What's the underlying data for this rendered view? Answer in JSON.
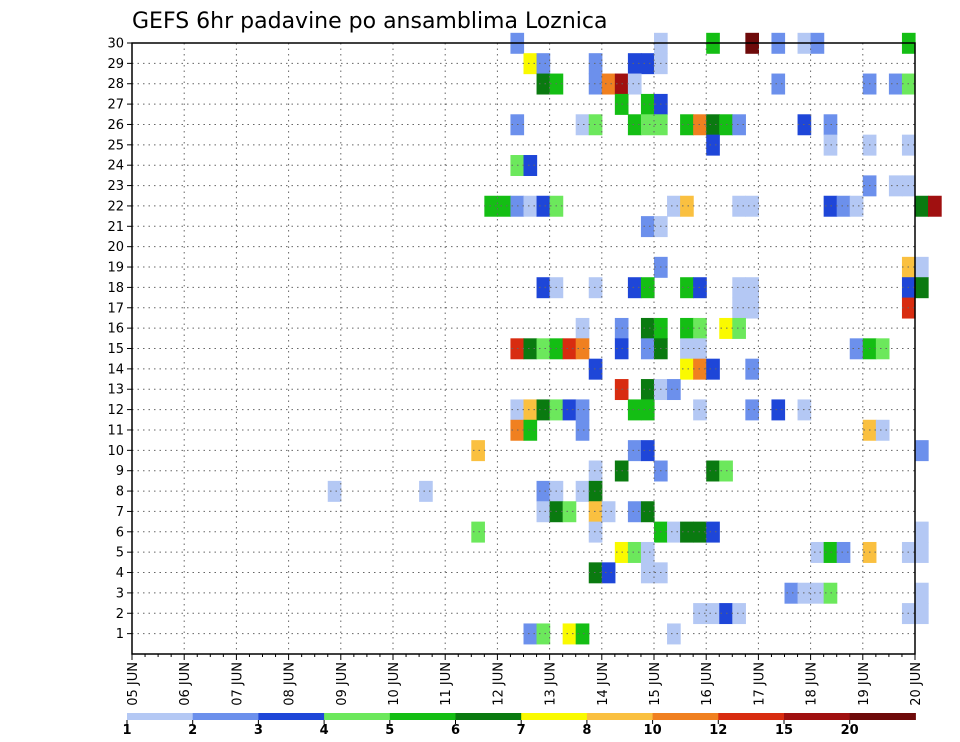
{
  "chart_data": {
    "type": "heatmap",
    "title": "GEFS 6hr padavine po ansamblima Loznica",
    "xlabel": "",
    "ylabel": "",
    "x_tick_labels": [
      "05 JUN",
      "06 JUN",
      "07 JUN",
      "08 JUN",
      "09 JUN",
      "10 JUN",
      "11 JUN",
      "12 JUN",
      "13 JUN",
      "14 JUN",
      "15 JUN",
      "16 JUN",
      "17 JUN",
      "18 JUN",
      "19 JUN",
      "20 JUN"
    ],
    "y_tick_labels": [
      "1",
      "2",
      "3",
      "4",
      "5",
      "6",
      "7",
      "8",
      "9",
      "10",
      "11",
      "12",
      "13",
      "14",
      "15",
      "16",
      "17",
      "18",
      "19",
      "20",
      "21",
      "22",
      "23",
      "24",
      "25",
      "26",
      "27",
      "28",
      "29",
      "30"
    ],
    "x_range_days": [
      0,
      15
    ],
    "y_range": [
      0,
      30
    ],
    "grid": "dotted",
    "legend": {
      "position": "bottom",
      "bins": [
        {
          "color": "#b4c8f4"
        },
        {
          "color": "#6c90ec"
        },
        {
          "color": "#1e46d8"
        },
        {
          "color": "#6ce85c"
        },
        {
          "color": "#14be14"
        },
        {
          "color": "#0a7a10"
        },
        {
          "color": "#fafa00"
        },
        {
          "color": "#fac040"
        },
        {
          "color": "#f08020"
        },
        {
          "color": "#d82c10"
        },
        {
          "color": "#a01010"
        },
        {
          "color": "#6e0a0a"
        }
      ],
      "tick_labels": [
        "1",
        "2",
        "3",
        "4",
        "5",
        "6",
        "7",
        "8",
        "10",
        "12",
        "15",
        "20"
      ]
    },
    "cells": [
      [
        7.25,
        30,
        2
      ],
      [
        10,
        30,
        1
      ],
      [
        11,
        30,
        5
      ],
      [
        11.75,
        30,
        12
      ],
      [
        12.25,
        30,
        2
      ],
      [
        12.75,
        30,
        1
      ],
      [
        13,
        30,
        2
      ],
      [
        14.75,
        30,
        5
      ],
      [
        7.5,
        29,
        7
      ],
      [
        7.75,
        29,
        2
      ],
      [
        8.75,
        29,
        2
      ],
      [
        9.5,
        29,
        3
      ],
      [
        9.75,
        29,
        3
      ],
      [
        10,
        29,
        1
      ],
      [
        7.75,
        28,
        6
      ],
      [
        8,
        28,
        5
      ],
      [
        8.75,
        28,
        2
      ],
      [
        9,
        28,
        9
      ],
      [
        9.25,
        28,
        11
      ],
      [
        9.5,
        28,
        1
      ],
      [
        12.25,
        28,
        2
      ],
      [
        14,
        28,
        2
      ],
      [
        14.5,
        28,
        2
      ],
      [
        14.75,
        28,
        4
      ],
      [
        9.25,
        27,
        5
      ],
      [
        9.75,
        27,
        5
      ],
      [
        10,
        27,
        3
      ],
      [
        7.25,
        26,
        2
      ],
      [
        8.5,
        26,
        1
      ],
      [
        8.75,
        26,
        4
      ],
      [
        9.5,
        26,
        5
      ],
      [
        9.75,
        26,
        4
      ],
      [
        10,
        26,
        4
      ],
      [
        10.5,
        26,
        5
      ],
      [
        10.75,
        26,
        9
      ],
      [
        11,
        26,
        6
      ],
      [
        11.25,
        26,
        5
      ],
      [
        11.5,
        26,
        2
      ],
      [
        12.75,
        26,
        3
      ],
      [
        13.25,
        26,
        2
      ],
      [
        11,
        25,
        3
      ],
      [
        13.25,
        25,
        1
      ],
      [
        14,
        25,
        1
      ],
      [
        14.75,
        25,
        1
      ],
      [
        7.25,
        24,
        4
      ],
      [
        7.5,
        24,
        3
      ],
      [
        14,
        23,
        2
      ],
      [
        14.5,
        23,
        1
      ],
      [
        14.75,
        23,
        1
      ],
      [
        6.75,
        22,
        5
      ],
      [
        7,
        22,
        5
      ],
      [
        7.25,
        22,
        2
      ],
      [
        7.5,
        22,
        1
      ],
      [
        7.75,
        22,
        3
      ],
      [
        8,
        22,
        4
      ],
      [
        10.25,
        22,
        1
      ],
      [
        10.5,
        22,
        8
      ],
      [
        11.5,
        22,
        1
      ],
      [
        11.75,
        22,
        1
      ],
      [
        13.25,
        22,
        3
      ],
      [
        13.5,
        22,
        2
      ],
      [
        13.75,
        22,
        1
      ],
      [
        15,
        22,
        6
      ],
      [
        15.25,
        22,
        11
      ],
      [
        9.75,
        21,
        2
      ],
      [
        10,
        21,
        1
      ],
      [
        10,
        19,
        2
      ],
      [
        14.75,
        19,
        8
      ],
      [
        15,
        19,
        1
      ],
      [
        7.75,
        18,
        3
      ],
      [
        8,
        18,
        1
      ],
      [
        8.75,
        18,
        1
      ],
      [
        9.5,
        18,
        3
      ],
      [
        9.75,
        18,
        5
      ],
      [
        10.5,
        18,
        5
      ],
      [
        10.75,
        18,
        3
      ],
      [
        11.5,
        18,
        1
      ],
      [
        11.75,
        18,
        1
      ],
      [
        14.75,
        18,
        3
      ],
      [
        15,
        18,
        6
      ],
      [
        11.5,
        17,
        1
      ],
      [
        11.75,
        17,
        1
      ],
      [
        14.75,
        17,
        10
      ],
      [
        8.5,
        16,
        1
      ],
      [
        9.25,
        16,
        2
      ],
      [
        9.75,
        16,
        6
      ],
      [
        10,
        16,
        5
      ],
      [
        10.5,
        16,
        5
      ],
      [
        10.75,
        16,
        4
      ],
      [
        11.25,
        16,
        7
      ],
      [
        11.5,
        16,
        4
      ],
      [
        7.25,
        15,
        10
      ],
      [
        7.5,
        15,
        6
      ],
      [
        7.75,
        15,
        4
      ],
      [
        8,
        15,
        5
      ],
      [
        8.25,
        15,
        10
      ],
      [
        8.5,
        15,
        9
      ],
      [
        9.25,
        15,
        3
      ],
      [
        9.75,
        15,
        2
      ],
      [
        10,
        15,
        6
      ],
      [
        10.5,
        15,
        1
      ],
      [
        10.75,
        15,
        1
      ],
      [
        13.75,
        15,
        2
      ],
      [
        14,
        15,
        5
      ],
      [
        14.25,
        15,
        4
      ],
      [
        8.75,
        14,
        3
      ],
      [
        10.5,
        14,
        7
      ],
      [
        10.75,
        14,
        9
      ],
      [
        11,
        14,
        3
      ],
      [
        11.75,
        14,
        2
      ],
      [
        9.25,
        13,
        10
      ],
      [
        9.75,
        13,
        6
      ],
      [
        10,
        13,
        1
      ],
      [
        10.25,
        13,
        2
      ],
      [
        7.25,
        12,
        1
      ],
      [
        7.5,
        12,
        8
      ],
      [
        7.75,
        12,
        6
      ],
      [
        8,
        12,
        4
      ],
      [
        8.25,
        12,
        3
      ],
      [
        8.5,
        12,
        2
      ],
      [
        9.5,
        12,
        5
      ],
      [
        9.75,
        12,
        5
      ],
      [
        10.75,
        12,
        1
      ],
      [
        11.75,
        12,
        2
      ],
      [
        12.25,
        12,
        3
      ],
      [
        12.75,
        12,
        1
      ],
      [
        7.25,
        11,
        9
      ],
      [
        7.5,
        11,
        5
      ],
      [
        8.5,
        11,
        2
      ],
      [
        14,
        11,
        8
      ],
      [
        14.25,
        11,
        1
      ],
      [
        6.5,
        10,
        8
      ],
      [
        9.5,
        10,
        2
      ],
      [
        9.75,
        10,
        3
      ],
      [
        15,
        10,
        2
      ],
      [
        8.75,
        9,
        1
      ],
      [
        9.25,
        9,
        6
      ],
      [
        10,
        9,
        2
      ],
      [
        11,
        9,
        6
      ],
      [
        11.25,
        9,
        4
      ],
      [
        3.75,
        8,
        1
      ],
      [
        5.5,
        8,
        1
      ],
      [
        7.75,
        8,
        2
      ],
      [
        8,
        8,
        1
      ],
      [
        8.5,
        8,
        1
      ],
      [
        8.75,
        8,
        6
      ],
      [
        7.75,
        7,
        1
      ],
      [
        8,
        7,
        6
      ],
      [
        8.25,
        7,
        4
      ],
      [
        8.75,
        7,
        8
      ],
      [
        9,
        7,
        1
      ],
      [
        9.5,
        7,
        2
      ],
      [
        9.75,
        7,
        6
      ],
      [
        6.5,
        6,
        4
      ],
      [
        8.75,
        6,
        1
      ],
      [
        10,
        6,
        5
      ],
      [
        10.25,
        6,
        1
      ],
      [
        10.5,
        6,
        6
      ],
      [
        10.75,
        6,
        6
      ],
      [
        11,
        6,
        3
      ],
      [
        15,
        6,
        1
      ],
      [
        9.25,
        5,
        7
      ],
      [
        9.5,
        5,
        4
      ],
      [
        9.75,
        5,
        1
      ],
      [
        13,
        5,
        1
      ],
      [
        13.25,
        5,
        5
      ],
      [
        13.5,
        5,
        2
      ],
      [
        14,
        5,
        8
      ],
      [
        14.75,
        5,
        1
      ],
      [
        15,
        5,
        1
      ],
      [
        8.75,
        4,
        6
      ],
      [
        9,
        4,
        3
      ],
      [
        9.75,
        4,
        1
      ],
      [
        10,
        4,
        1
      ],
      [
        12.5,
        3,
        2
      ],
      [
        12.75,
        3,
        1
      ],
      [
        13,
        3,
        1
      ],
      [
        13.25,
        3,
        4
      ],
      [
        15,
        3,
        1
      ],
      [
        10.75,
        2,
        1
      ],
      [
        11,
        2,
        1
      ],
      [
        11.25,
        2,
        3
      ],
      [
        11.5,
        2,
        1
      ],
      [
        14.75,
        2,
        1
      ],
      [
        15,
        2,
        1
      ],
      [
        7.5,
        1,
        2
      ],
      [
        7.75,
        1,
        4
      ],
      [
        8.25,
        1,
        7
      ],
      [
        8.5,
        1,
        5
      ],
      [
        10.25,
        1,
        1
      ]
    ]
  }
}
